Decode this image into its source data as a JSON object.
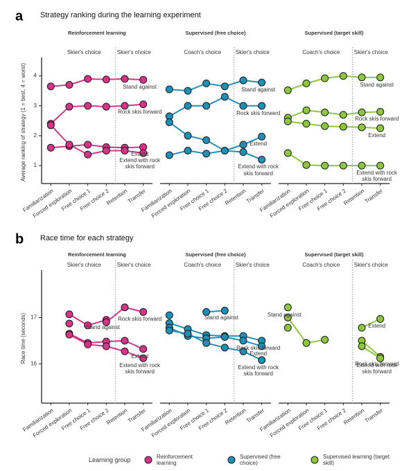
{
  "chart_data": [
    {
      "type": "line",
      "panel_label": "a",
      "title": "Strategy ranking during the learning experiment",
      "y_label": "Average ranking of strategy (1 = best, 4 = worst)",
      "ylim": [
        0.4,
        4.5
      ],
      "yticks": [
        1,
        2,
        3,
        4
      ],
      "categories": [
        "Familiarization",
        "Forced exploration",
        "Free choice 1",
        "Free choice 2",
        "Retention",
        "Transfer"
      ],
      "groups": [
        {
          "name": "Reinforcement learning",
          "color": "#d6338a",
          "phase_labels": [
            "Skier's choice",
            "Skier's choice"
          ],
          "series": [
            {
              "name": "Stand against",
              "values": [
                3.65,
                3.7,
                3.9,
                3.88,
                3.9,
                3.87
              ]
            },
            {
              "name": "Rock skis forward",
              "values": [
                2.4,
                2.97,
                3.0,
                2.97,
                3.0,
                3.05
              ]
            },
            {
              "name": "Extend",
              "values": [
                1.6,
                1.65,
                1.7,
                1.62,
                1.6,
                1.62
              ]
            },
            {
              "name": "Extend with rock skis forward",
              "values": [
                2.35,
                1.7,
                1.37,
                1.5,
                1.5,
                1.42
              ]
            }
          ]
        },
        {
          "name": "Supervised (free choice)",
          "color": "#1f8fb5",
          "phase_labels": [
            "Coach's choice",
            "Skier's choice"
          ],
          "series": [
            {
              "name": "Stand against",
              "values": [
                3.55,
                3.5,
                3.75,
                3.65,
                3.85,
                3.78
              ]
            },
            {
              "name": "Rock skis forward",
              "values": [
                2.65,
                3.0,
                3.0,
                3.3,
                3.0,
                3.0
              ]
            },
            {
              "name": "Extend",
              "values": [
                2.45,
                2.0,
                1.85,
                1.5,
                1.7,
                1.97
              ]
            },
            {
              "name": "Extend with rock skis forward",
              "values": [
                1.35,
                1.5,
                1.4,
                1.5,
                1.45,
                1.2
              ]
            }
          ]
        },
        {
          "name": "Supervised (target skill)",
          "color": "#8dc63f",
          "phase_labels": [
            "Coach's choice",
            "Skier's choice"
          ],
          "series": [
            {
              "name": "Stand against",
              "values": [
                3.52,
                3.75,
                3.92,
                4.0,
                3.95,
                3.95
              ]
            },
            {
              "name": "Rock skis forward",
              "values": [
                2.6,
                2.85,
                2.78,
                2.7,
                2.78,
                2.8
              ]
            },
            {
              "name": "Extend",
              "values": [
                2.48,
                2.4,
                2.32,
                2.3,
                2.28,
                2.25
              ]
            },
            {
              "name": "Extend with rock skis forward",
              "values": [
                1.42,
                1.02,
                1.0,
                1.0,
                1.0,
                1.0
              ]
            }
          ]
        }
      ]
    },
    {
      "type": "line",
      "panel_label": "b",
      "title": "Race time for each strategy",
      "y_label": "Race time (seconds)",
      "ylim": [
        15.15,
        17.95
      ],
      "yticks": [
        16,
        17
      ],
      "categories": [
        "Familiarization",
        "Forced exploration",
        "Free choice 1",
        "Free choice 2",
        "Retention",
        "Transfer"
      ],
      "groups": [
        {
          "name": "Reinforcement learning",
          "color": "#d6338a",
          "phase_labels": [
            "Skier's choice",
            "Skier's choice"
          ],
          "series": [
            {
              "name": "Stand against",
              "values": [
                null,
                17.07,
                16.83,
                16.95,
                null,
                null
              ]
            },
            {
              "name": "Rock skis forward",
              "values": [
                null,
                16.87,
                null,
                16.9,
                17.22,
                17.12
              ]
            },
            {
              "name": "Extend",
              "values": [
                null,
                16.65,
                16.45,
                16.48,
                16.5,
                16.32
              ]
            },
            {
              "name": "Extend with rock skis forward",
              "values": [
                null,
                16.63,
                16.42,
                16.38,
                16.27,
                16.12
              ]
            }
          ]
        },
        {
          "name": "Supervised (free choice)",
          "color": "#1f8fb5",
          "phase_labels": [
            "Coach's choice",
            "Skier's choice"
          ],
          "series": [
            {
              "name": "Stand against",
              "values": [
                17.05,
                null,
                17.12,
                17.15,
                null,
                null
              ]
            },
            {
              "name": "Rock skis forward",
              "values": [
                16.88,
                16.75,
                16.62,
                16.6,
                16.6,
                16.5
              ]
            },
            {
              "name": "Extend",
              "values": [
                16.78,
                16.6,
                16.55,
                16.58,
                16.5,
                16.38
              ]
            },
            {
              "name": "Extend with rock skis forward",
              "values": [
                16.72,
                16.65,
                16.45,
                16.35,
                16.27,
                16.08
              ]
            }
          ]
        },
        {
          "name": "Supervised (target skill)",
          "color": "#8dc63f",
          "phase_labels": [
            "Coach's choice",
            "Skier's choice"
          ],
          "series": [
            {
              "name": "Stand against",
              "values": [
                17.22,
                null,
                null,
                null,
                null,
                null
              ]
            },
            {
              "name": "Rock skis forward",
              "values": [
                17.0,
                16.45,
                16.52,
                null,
                16.5,
                16.15
              ]
            },
            {
              "name": "Extend",
              "values": [
                16.78,
                null,
                null,
                null,
                16.78,
                16.97
              ]
            },
            {
              "name": "Extend with rock skis forward",
              "values": [
                null,
                null,
                null,
                null,
                16.38,
                16.12
              ]
            }
          ]
        }
      ]
    }
  ],
  "legend": {
    "title": "Learning group",
    "items": [
      {
        "name": "Reinforcement learning",
        "color": "#d6338a"
      },
      {
        "name": "Supervised (free choice)",
        "color": "#1f8fb5"
      },
      {
        "name": "Supervised learning (target skill)",
        "color": "#8dc63f"
      }
    ]
  }
}
